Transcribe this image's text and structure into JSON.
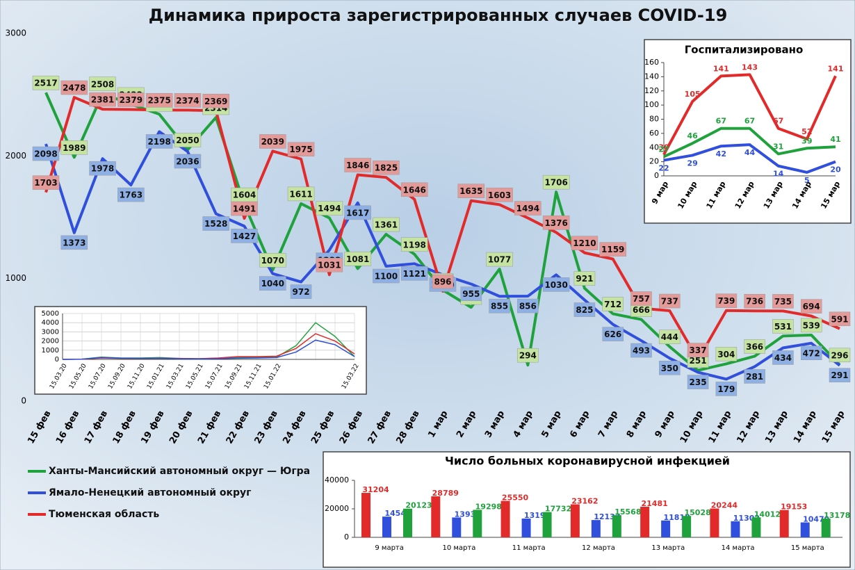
{
  "chart_data": [
    {
      "type": "line",
      "title": "Динамика прироста зарегистрированных случаев COVID-19",
      "categories": [
        "15 фев",
        "16 фев",
        "17 фев",
        "18 фев",
        "19 фев",
        "20 фев",
        "21 фев",
        "22 фев",
        "23 фев",
        "24 фев",
        "25 фев",
        "26 фев",
        "27 фев",
        "28 фев",
        "1 мар",
        "2 мар",
        "3 мар",
        "4 мар",
        "5 мар",
        "6 мар",
        "7 мар",
        "8 мар",
        "9 мар",
        "10 мар",
        "11 мар",
        "12 мар",
        "13 мар",
        "14 мар",
        "15 мар"
      ],
      "series": [
        {
          "name": "Ханты-Мансийский автономный округ — Югра",
          "color": "#1fa23c",
          "values": [
            2517,
            1989,
            2508,
            2422,
            2341,
            2050,
            2314,
            1604,
            1070,
            1611,
            1494,
            1081,
            1361,
            1198,
            906,
            765,
            1077,
            294,
            1706,
            921,
            712,
            666,
            444,
            251,
            304,
            366,
            531,
            539,
            296
          ]
        },
        {
          "name": "Ямало-Ненецкий автономный округ",
          "color": "#2f4fdc",
          "values": [
            2098,
            1373,
            1978,
            1763,
            2198,
            2036,
            1528,
            1427,
            1040,
            972,
            1232,
            1617,
            1100,
            1121,
            1030,
            955,
            855,
            856,
            1030,
            825,
            626,
            493,
            350,
            235,
            179,
            281,
            434,
            472,
            291
          ]
        },
        {
          "name": "Тюменская область",
          "color": "#e32a2a",
          "values": [
            1703,
            2478,
            2381,
            2379,
            2375,
            2374,
            2369,
            1491,
            2039,
            1975,
            1031,
            1846,
            1825,
            1646,
            896,
            1635,
            1603,
            1494,
            1376,
            1210,
            1159,
            757,
            737,
            337,
            739,
            736,
            735,
            694,
            591
          ]
        }
      ],
      "ylim": [
        0,
        3000
      ],
      "yticks": [
        0,
        1000,
        2000,
        3000
      ]
    },
    {
      "type": "line",
      "title": "Госпитализировано",
      "categories": [
        "9 мар",
        "10 мар",
        "11 мар",
        "12 мар",
        "13 мар",
        "14 мар",
        "15 мар"
      ],
      "series": [
        {
          "color": "#e32a2a",
          "values": [
            30,
            105,
            141,
            143,
            67,
            52,
            141
          ]
        },
        {
          "color": "#1fa23c",
          "values": [
            27,
            46,
            67,
            67,
            31,
            39,
            41
          ]
        },
        {
          "color": "#2f4fdc",
          "values": [
            22,
            29,
            42,
            44,
            14,
            5,
            20
          ]
        }
      ],
      "ylim": [
        0,
        160
      ],
      "yticks": [
        0,
        20,
        40,
        60,
        80,
        100,
        120,
        140,
        160
      ]
    },
    {
      "type": "bar",
      "title": "Число больных коронавирусной инфекцией",
      "categories": [
        "9 марта",
        "10 марта",
        "11 марта",
        "12 марта",
        "13 марта",
        "14 марта",
        "15 марта"
      ],
      "series": [
        {
          "color": "#e32a2a",
          "values": [
            31204,
            28789,
            25550,
            23162,
            21481,
            20244,
            19153
          ]
        },
        {
          "color": "#2f4fdc",
          "values": [
            14545,
            13936,
            13199,
            12137,
            11818,
            11302,
            10479
          ]
        },
        {
          "color": "#1fa23c",
          "values": [
            20123,
            19298,
            17732,
            15568,
            15028,
            14012,
            13178
          ]
        }
      ],
      "ylim": [
        0,
        40000
      ],
      "yticks": [
        0,
        20000,
        40000
      ]
    },
    {
      "type": "line",
      "categories": [
        "15.03.20",
        "15.05.20",
        "15.07.20",
        "15.09.20",
        "15.11.20",
        "15.01.21",
        "15.03.21",
        "15.05.21",
        "15.07.21",
        "15.09.21",
        "15.11.21",
        "15.01.22",
        null,
        null,
        null,
        "15.03.22"
      ],
      "series": [
        {
          "color": "#1fa23c",
          "values": [
            0,
            30,
            250,
            150,
            150,
            200,
            100,
            80,
            120,
            200,
            250,
            250,
            1500,
            4000,
            2500,
            300
          ]
        },
        {
          "color": "#e32a2a",
          "values": [
            0,
            20,
            150,
            100,
            100,
            120,
            100,
            80,
            150,
            300,
            300,
            350,
            1200,
            2800,
            2000,
            600
          ]
        },
        {
          "color": "#2f4fdc",
          "values": [
            0,
            30,
            200,
            120,
            100,
            100,
            80,
            60,
            80,
            120,
            150,
            200,
            800,
            2100,
            1600,
            300
          ]
        }
      ],
      "ylim": [
        0,
        5000
      ],
      "yticks": [
        0,
        1000,
        2000,
        3000,
        4000,
        5000
      ],
      "grid": true
    }
  ]
}
